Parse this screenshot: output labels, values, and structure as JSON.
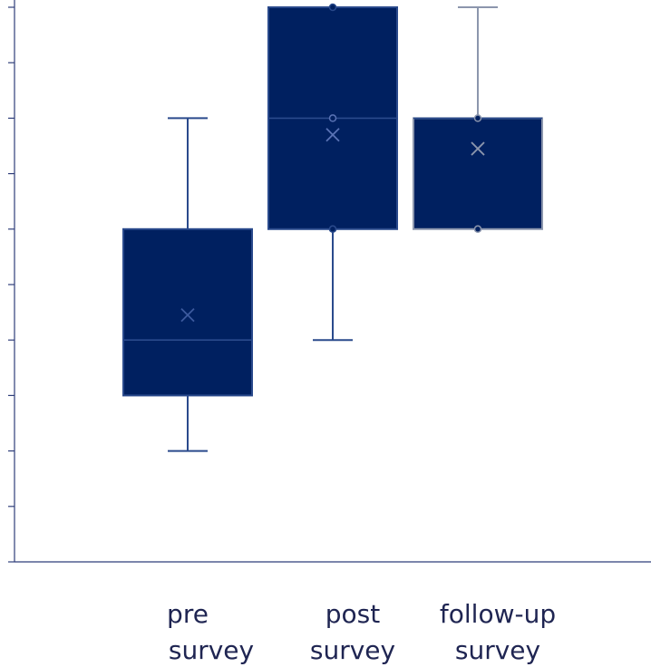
{
  "colors": {
    "box_fill": "#002060",
    "box_stroke_dark": "#2a4a8c",
    "box_stroke_light": "#8c96ad",
    "axis": "#2f3e7a",
    "text": "#1f2552"
  },
  "chart_data": {
    "type": "box",
    "title": "",
    "xlabel": "",
    "ylabel": "",
    "ylim": [
      0,
      10
    ],
    "y_ticks": [
      0,
      1,
      2,
      3,
      4,
      5,
      6,
      7,
      8,
      9,
      10
    ],
    "y_tick_labels_visible": false,
    "grid": false,
    "categories": [
      {
        "label_line1": "pre",
        "label_line2": "survey",
        "min": 2,
        "q1": 3,
        "median": 4,
        "q3": 6,
        "max": 8,
        "mean": 4.45
      },
      {
        "label_line1": "post",
        "label_line2": "survey",
        "min": 4,
        "q1": 6,
        "median": 8,
        "q3": 10,
        "max": 10,
        "mean": 7.7
      },
      {
        "label_line1": "follow-up",
        "label_line2": "survey",
        "min": 6,
        "q1": 6,
        "median": 8,
        "q3": 8,
        "max": 10,
        "mean": 7.45
      }
    ]
  }
}
